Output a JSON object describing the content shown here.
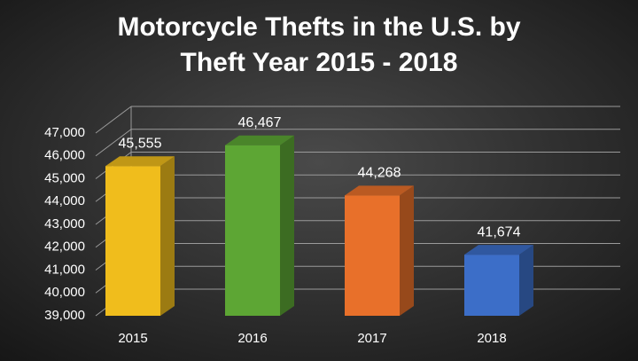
{
  "chart_data": {
    "type": "bar3d",
    "title": [
      "Motorcycle Thefts in the U.S. by",
      "Theft Year 2015 - 2018"
    ],
    "categories": [
      "2015",
      "2016",
      "2017",
      "2018"
    ],
    "values": [
      45555,
      46467,
      44268,
      41674
    ],
    "value_labels": [
      "45,555",
      "46,467",
      "44,268",
      "41,674"
    ],
    "colors": [
      "#f0bd1c",
      "#5da634",
      "#e8702a",
      "#3c6ec8"
    ],
    "ylim": [
      39000,
      47000
    ],
    "yticks": [
      {
        "value": 39000,
        "label": "39,000"
      },
      {
        "value": 40000,
        "label": "40,000"
      },
      {
        "value": 41000,
        "label": "41,000"
      },
      {
        "value": 42000,
        "label": "42,000"
      },
      {
        "value": 43000,
        "label": "43,000"
      },
      {
        "value": 44000,
        "label": "44,000"
      },
      {
        "value": 45000,
        "label": "45,000"
      },
      {
        "value": 46000,
        "label": "46,000"
      },
      {
        "value": 47000,
        "label": "47,000"
      }
    ],
    "grid": true
  }
}
